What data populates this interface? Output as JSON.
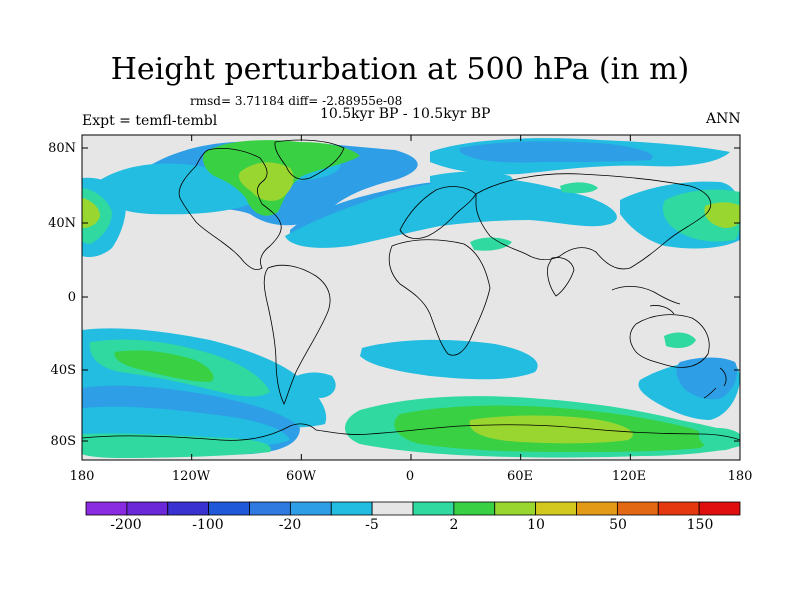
{
  "title": "Height perturbation at 500 hPa (in m)",
  "stats": "rmsd= 3.71184 diff= -2.88955e-08",
  "subtitle": "10.5kyr BP - 10.5kyr BP",
  "experiment": "Expt = temfl-tembl",
  "season": "ANN",
  "lat_labels": [
    "80N",
    "40N",
    "0",
    "40S",
    "80S"
  ],
  "lon_labels": [
    "180",
    "120W",
    "60W",
    "0",
    "60E",
    "120E",
    "180"
  ],
  "colorbar": {
    "labels": [
      "-200",
      "-100",
      "-20",
      "-5",
      "2",
      "10",
      "50",
      "150"
    ],
    "colors": [
      "#8a2be2",
      "#6a28d8",
      "#3a32d0",
      "#1f58d8",
      "#2e7ae0",
      "#2e9ee6",
      "#22bde0",
      "#e6e6e6",
      "#2fd9a0",
      "#3ad044",
      "#9ad630",
      "#d2c81e",
      "#e39a16",
      "#e36814",
      "#e6380e",
      "#e00e0e"
    ]
  },
  "colors": {
    "neutral": "#e6e6e6",
    "light_blue": "#22bde0",
    "mid_blue": "#2e9ee6",
    "teal": "#2fd9a0",
    "green": "#3ad044",
    "yellow_green": "#9ad630"
  }
}
